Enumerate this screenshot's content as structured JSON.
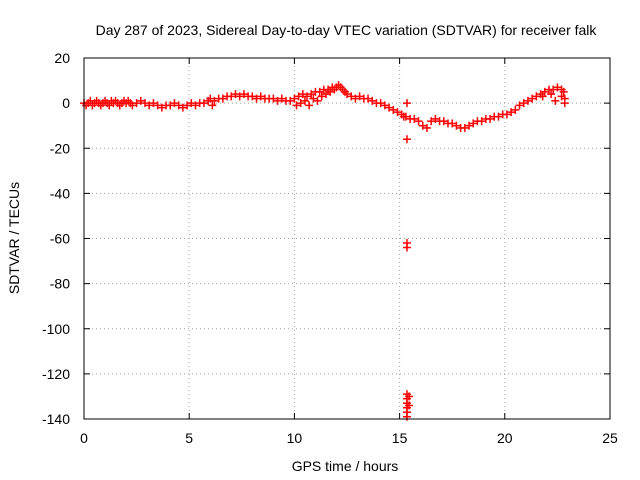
{
  "chart_data": {
    "type": "scatter",
    "title": "Day 287 of 2023, Sidereal Day-to-day VTEC variation (SDTVAR) for receiver falk",
    "xlabel": "GPS time / hours",
    "ylabel": "SDTVAR / TECUs",
    "xlim": [
      0,
      25
    ],
    "ylim": [
      -140,
      20
    ],
    "xticks": [
      0,
      5,
      10,
      15,
      20,
      25
    ],
    "yticks": [
      20,
      0,
      -20,
      -40,
      -60,
      -80,
      -100,
      -120,
      -140
    ],
    "grid": true,
    "marker": "+",
    "color": "#ff0000",
    "series": [
      {
        "name": "SDTVAR",
        "points": [
          [
            0.0,
            0
          ],
          [
            0.1,
            -1
          ],
          [
            0.2,
            0
          ],
          [
            0.3,
            1
          ],
          [
            0.4,
            -1
          ],
          [
            0.5,
            0
          ],
          [
            0.6,
            1
          ],
          [
            0.7,
            0
          ],
          [
            0.8,
            -1
          ],
          [
            0.9,
            0
          ],
          [
            1.0,
            1
          ],
          [
            1.1,
            0
          ],
          [
            1.2,
            -1
          ],
          [
            1.3,
            1
          ],
          [
            1.4,
            0
          ],
          [
            1.5,
            1
          ],
          [
            1.6,
            0
          ],
          [
            1.7,
            -1
          ],
          [
            1.8,
            0
          ],
          [
            1.9,
            1
          ],
          [
            2.0,
            0
          ],
          [
            2.1,
            1
          ],
          [
            2.2,
            0
          ],
          [
            2.3,
            -1
          ],
          [
            2.5,
            0
          ],
          [
            2.7,
            1
          ],
          [
            2.9,
            0
          ],
          [
            3.1,
            -1
          ],
          [
            3.3,
            0
          ],
          [
            3.5,
            -1
          ],
          [
            3.7,
            -2
          ],
          [
            3.9,
            -1
          ],
          [
            4.1,
            -1
          ],
          [
            4.3,
            0
          ],
          [
            4.5,
            -1
          ],
          [
            4.7,
            -2
          ],
          [
            4.9,
            -1
          ],
          [
            5.1,
            0
          ],
          [
            5.3,
            -1
          ],
          [
            5.5,
            0
          ],
          [
            5.7,
            0
          ],
          [
            5.9,
            1
          ],
          [
            6.0,
            2
          ],
          [
            6.1,
            -1
          ],
          [
            6.2,
            1
          ],
          [
            6.4,
            2
          ],
          [
            6.6,
            2
          ],
          [
            6.8,
            3
          ],
          [
            7.0,
            3
          ],
          [
            7.2,
            4
          ],
          [
            7.4,
            3
          ],
          [
            7.6,
            4
          ],
          [
            7.8,
            3
          ],
          [
            8.0,
            3
          ],
          [
            8.2,
            2
          ],
          [
            8.4,
            3
          ],
          [
            8.6,
            2
          ],
          [
            8.8,
            2
          ],
          [
            9.0,
            2
          ],
          [
            9.2,
            1
          ],
          [
            9.4,
            2
          ],
          [
            9.6,
            1
          ],
          [
            9.8,
            1
          ],
          [
            10.0,
            2
          ],
          [
            10.1,
            -1
          ],
          [
            10.2,
            3
          ],
          [
            10.3,
            0
          ],
          [
            10.4,
            4
          ],
          [
            10.5,
            1
          ],
          [
            10.6,
            3
          ],
          [
            10.7,
            -1
          ],
          [
            10.8,
            4
          ],
          [
            10.9,
            2
          ],
          [
            11.0,
            5
          ],
          [
            11.1,
            1
          ],
          [
            11.2,
            5
          ],
          [
            11.3,
            3
          ],
          [
            11.4,
            6
          ],
          [
            11.5,
            4
          ],
          [
            11.6,
            6
          ],
          [
            11.7,
            5
          ],
          [
            11.8,
            7
          ],
          [
            11.9,
            6
          ],
          [
            12.0,
            7
          ],
          [
            12.1,
            8
          ],
          [
            12.2,
            7
          ],
          [
            12.3,
            6
          ],
          [
            12.4,
            5
          ],
          [
            12.5,
            4
          ],
          [
            12.7,
            3
          ],
          [
            12.9,
            2
          ],
          [
            13.1,
            3
          ],
          [
            13.3,
            2
          ],
          [
            13.5,
            2
          ],
          [
            13.7,
            1
          ],
          [
            13.9,
            0
          ],
          [
            14.1,
            0
          ],
          [
            14.3,
            -1
          ],
          [
            14.5,
            -2
          ],
          [
            14.7,
            -3
          ],
          [
            14.9,
            -4
          ],
          [
            15.1,
            -5
          ],
          [
            15.2,
            -6
          ],
          [
            15.3,
            -6
          ],
          [
            15.35,
            0
          ],
          [
            15.35,
            -16
          ],
          [
            15.35,
            -62
          ],
          [
            15.35,
            -64
          ],
          [
            15.35,
            -129
          ],
          [
            15.35,
            -131
          ],
          [
            15.35,
            -133
          ],
          [
            15.35,
            -135
          ],
          [
            15.35,
            -137
          ],
          [
            15.35,
            -139
          ],
          [
            15.45,
            -130
          ],
          [
            15.45,
            -134
          ],
          [
            15.5,
            -7
          ],
          [
            15.7,
            -7
          ],
          [
            15.9,
            -8
          ],
          [
            16.1,
            -10
          ],
          [
            16.3,
            -11
          ],
          [
            16.5,
            -8
          ],
          [
            16.7,
            -7
          ],
          [
            16.9,
            -8
          ],
          [
            17.1,
            -8
          ],
          [
            17.3,
            -9
          ],
          [
            17.5,
            -9
          ],
          [
            17.7,
            -10
          ],
          [
            17.9,
            -11
          ],
          [
            18.1,
            -11
          ],
          [
            18.3,
            -10
          ],
          [
            18.5,
            -9
          ],
          [
            18.7,
            -8
          ],
          [
            18.9,
            -8
          ],
          [
            19.1,
            -7
          ],
          [
            19.3,
            -7
          ],
          [
            19.5,
            -6
          ],
          [
            19.7,
            -6
          ],
          [
            19.9,
            -5
          ],
          [
            20.1,
            -5
          ],
          [
            20.3,
            -4
          ],
          [
            20.5,
            -3
          ],
          [
            20.7,
            -1
          ],
          [
            20.9,
            0
          ],
          [
            21.1,
            1
          ],
          [
            21.3,
            2
          ],
          [
            21.5,
            3
          ],
          [
            21.7,
            4
          ],
          [
            21.9,
            5
          ],
          [
            22.1,
            6
          ],
          [
            22.3,
            6
          ],
          [
            22.5,
            7
          ],
          [
            22.7,
            6
          ],
          [
            22.8,
            5
          ],
          [
            22.85,
            2
          ],
          [
            22.85,
            0
          ],
          [
            22.7,
            3
          ],
          [
            22.4,
            1
          ],
          [
            22.2,
            4
          ],
          [
            21.8,
            3
          ]
        ]
      }
    ]
  }
}
